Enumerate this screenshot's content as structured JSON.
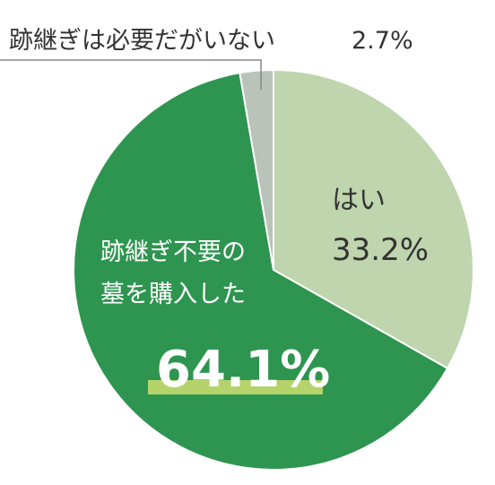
{
  "chart_data": {
    "type": "pie",
    "categories": [
      "はい",
      "跡継ぎ不要の\n墓を購入した",
      "跡継ぎは必要だがいない"
    ],
    "values": [
      33.2,
      64.1,
      2.7
    ],
    "value_labels": [
      "33.2%",
      "64.1%",
      "2.7%"
    ],
    "colors": [
      "#bed5ad",
      "#2e9550",
      "#b9c3b9"
    ]
  }
}
